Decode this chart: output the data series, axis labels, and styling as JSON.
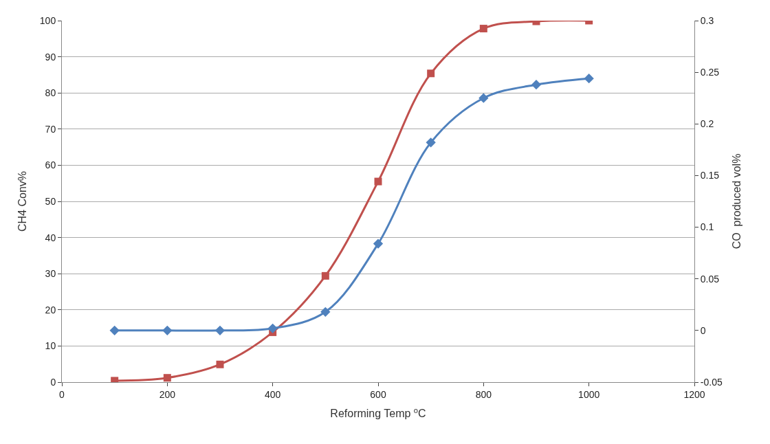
{
  "chart_data": {
    "type": "line",
    "xlabel": "Reforming Temp $^{o}$C",
    "ylabel": "CH4 Conv%",
    "y2label": "CO  produced vol%",
    "x": [
      100,
      200,
      300,
      400,
      500,
      600,
      700,
      800,
      900,
      1000
    ],
    "series": [
      {
        "color": "#c0504d",
        "marker": "square",
        "values": [
          0.4,
          1.2,
          4.9,
          13.8,
          29.4,
          55.5,
          85.4,
          97.8,
          99.8,
          100
        ]
      },
      {
        "color": "#4f81bd",
        "marker": "diamond",
        "axis": "y2",
        "values": [
          0,
          0,
          0,
          0.002,
          0.018,
          0.084,
          0.182,
          0.225,
          0.238,
          0.244
        ]
      }
    ],
    "xlim": [
      0,
      1200
    ],
    "xticks": [
      0,
      200,
      400,
      600,
      800,
      1000,
      1200
    ],
    "ylim": [
      0,
      100
    ],
    "yticks": [
      0,
      10,
      20,
      30,
      40,
      50,
      60,
      70,
      80,
      90,
      100
    ],
    "y2lim": [
      -0.05,
      0.3
    ],
    "y2ticks": [
      -0.05,
      0,
      0.05,
      0.1,
      0.15,
      0.2,
      0.25,
      0.3
    ],
    "grid": "y",
    "line_style": "solid"
  }
}
